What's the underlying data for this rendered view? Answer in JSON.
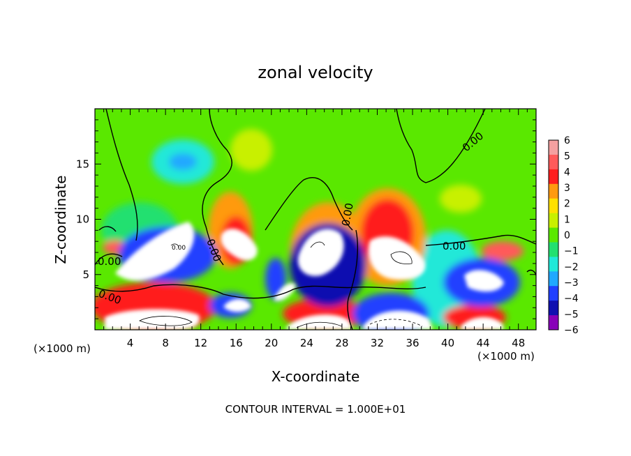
{
  "chart_data": {
    "type": "heatmap",
    "title": "zonal velocity",
    "xlabel": "X-coordinate",
    "ylabel": "Z-coordinate",
    "x_unit": "(×1000 m)",
    "x_unit_right": "(×1000 m)",
    "xlim": [
      0,
      50
    ],
    "ylim": [
      0,
      20
    ],
    "xticks": [
      "4",
      "8",
      "12",
      "16",
      "20",
      "24",
      "28",
      "32",
      "36",
      "40",
      "44",
      "48"
    ],
    "yticks": [
      "5",
      "10",
      "15"
    ],
    "colorbar": {
      "ticks": [
        "6",
        "5",
        "4",
        "3",
        "2",
        "1",
        "0",
        "−1",
        "−2",
        "−3",
        "−4",
        "−5",
        "−6"
      ],
      "colors": [
        "#f4a0a0",
        "#ff5a5a",
        "#ff1e1e",
        "#ff9a10",
        "#ffe000",
        "#c8f000",
        "#5ae800",
        "#22e070",
        "#20e8d8",
        "#20a8ff",
        "#2040ff",
        "#1010b0",
        "#8800b8"
      ]
    },
    "contour_labels": [
      "0.00",
      "0.00",
      "0.00",
      "0.00",
      "0.00",
      "0.00",
      "0.00"
    ],
    "footer": "CONTOUR INTERVAL = 1.000E+01"
  }
}
